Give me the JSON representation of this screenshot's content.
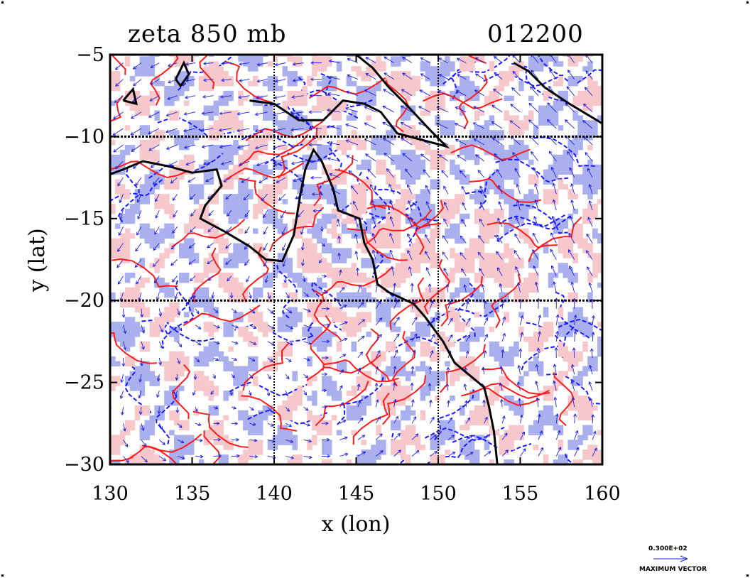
{
  "title": {
    "left": "zeta 850 mb",
    "right": "012200"
  },
  "axes": {
    "xlabel": "x (lon)",
    "ylabel": "y (lat)",
    "xlim": [
      130,
      160
    ],
    "ylim": [
      -30,
      -5
    ],
    "xticks": [
      "130",
      "135",
      "140",
      "145",
      "150",
      "155",
      "160"
    ],
    "yticks": [
      "-5",
      "-10",
      "-15",
      "-20",
      "-25",
      "-30"
    ],
    "gridlines_lon": [
      140,
      150
    ],
    "gridlines_lat": [
      -10,
      -20
    ]
  },
  "legend": {
    "value_label": "0.300E+02",
    "caption": "MAXIMUM VECTOR"
  },
  "colors": {
    "positive_fill": "#f6c8cc",
    "positive_line": "#ff1a1a",
    "negative_fill": "#aab0ee",
    "negative_line": "#1a1aff",
    "coastline": "#000000",
    "vector": "#2020e0"
  },
  "map_content": {
    "field": "relative vorticity (zeta) with wind vectors",
    "features": [
      "coastline",
      "wind-vectors",
      "positive-vorticity-contours",
      "negative-vorticity-contours"
    ]
  }
}
